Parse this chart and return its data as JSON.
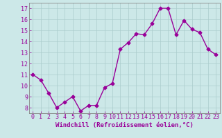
{
  "x": [
    0,
    1,
    2,
    3,
    4,
    5,
    6,
    7,
    8,
    9,
    10,
    11,
    12,
    13,
    14,
    15,
    16,
    17,
    18,
    19,
    20,
    21,
    22,
    23
  ],
  "y": [
    11.0,
    10.5,
    9.3,
    8.0,
    8.5,
    9.0,
    7.7,
    8.2,
    8.2,
    9.8,
    10.2,
    13.3,
    13.9,
    14.7,
    14.6,
    15.6,
    17.0,
    17.0,
    14.6,
    15.9,
    15.1,
    14.8,
    13.3,
    12.8
  ],
  "line_color": "#990099",
  "marker": "D",
  "marker_size": 2.5,
  "linewidth": 1.0,
  "xlabel": "Windchill (Refroidissement éolien,°C)",
  "xlabel_fontsize": 6.5,
  "ylim": [
    7.5,
    17.5
  ],
  "yticks": [
    8,
    9,
    10,
    11,
    12,
    13,
    14,
    15,
    16,
    17
  ],
  "xticks": [
    0,
    1,
    2,
    3,
    4,
    5,
    6,
    7,
    8,
    9,
    10,
    11,
    12,
    13,
    14,
    15,
    16,
    17,
    18,
    19,
    20,
    21,
    22,
    23
  ],
  "bg_color": "#cce8e8",
  "grid_color": "#aacccc",
  "tick_color": "#990099",
  "tick_fontsize": 6,
  "axis_color": "#990099",
  "spine_color": "#888888"
}
